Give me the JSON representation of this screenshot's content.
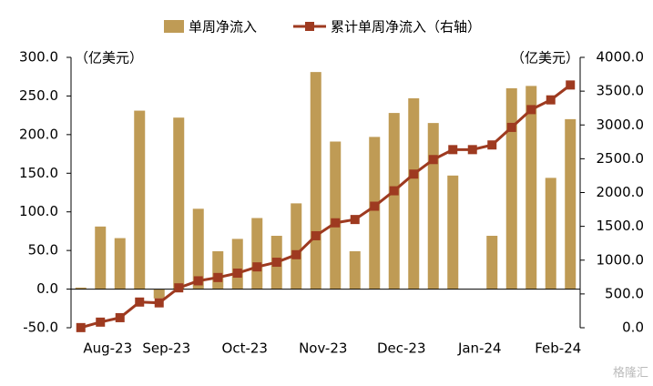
{
  "chart_data": {
    "type": "bar_line",
    "categories": [
      null,
      "Aug-23",
      null,
      null,
      "Sep-23",
      null,
      null,
      null,
      "Oct-23",
      null,
      null,
      null,
      "Nov-23",
      null,
      null,
      null,
      "Dec-23",
      null,
      null,
      null,
      "Jan-24",
      null,
      null,
      null,
      "Feb-24",
      null
    ],
    "series": [
      {
        "name": "单周净流入",
        "color": "#bf9b55",
        "type": "bar",
        "values": [
          2,
          81,
          66,
          231,
          -12,
          222,
          104,
          49,
          65,
          92,
          69,
          111,
          281,
          191,
          49,
          197,
          228,
          247,
          215,
          147,
          0,
          69,
          260,
          263,
          144,
          220
        ]
      },
      {
        "name": "累计单周净流入（右轴）",
        "color": "#9e3a20",
        "type": "line",
        "axis": "y2",
        "values": [
          2,
          83,
          149,
          380,
          368,
          590,
          694,
          743,
          808,
          900,
          969,
          1080,
          1361,
          1552,
          1601,
          1798,
          2026,
          2273,
          2488,
          2635,
          2635,
          2704,
          2964,
          3227,
          3371,
          3591
        ]
      }
    ],
    "y_unit": "（亿美元）",
    "y2_unit": "（亿美元）",
    "ylim": [
      -50,
      300
    ],
    "yticks": [
      {
        "value": -50,
        "label": "-50.0"
      },
      {
        "value": 0,
        "label": "0.0"
      },
      {
        "value": 50,
        "label": "50.0"
      },
      {
        "value": 100,
        "label": "100.0"
      },
      {
        "value": 150,
        "label": "150.0"
      },
      {
        "value": 200,
        "label": "200.0"
      },
      {
        "value": 250,
        "label": "250.0"
      },
      {
        "value": 300,
        "label": "300.0"
      }
    ],
    "y2lim": [
      0,
      4000
    ],
    "y2ticks": [
      {
        "value": 0,
        "label": "0.0"
      },
      {
        "value": 500,
        "label": "500.0"
      },
      {
        "value": 1000,
        "label": "1000.0"
      },
      {
        "value": 1500,
        "label": "1500.0"
      },
      {
        "value": 2000,
        "label": "2000.0"
      },
      {
        "value": 2500,
        "label": "2500.0"
      },
      {
        "value": 3000,
        "label": "3000.0"
      },
      {
        "value": 3500,
        "label": "3500.0"
      },
      {
        "value": 4000,
        "label": "4000.0"
      }
    ],
    "legend": "top",
    "watermark": "格隆汇"
  }
}
